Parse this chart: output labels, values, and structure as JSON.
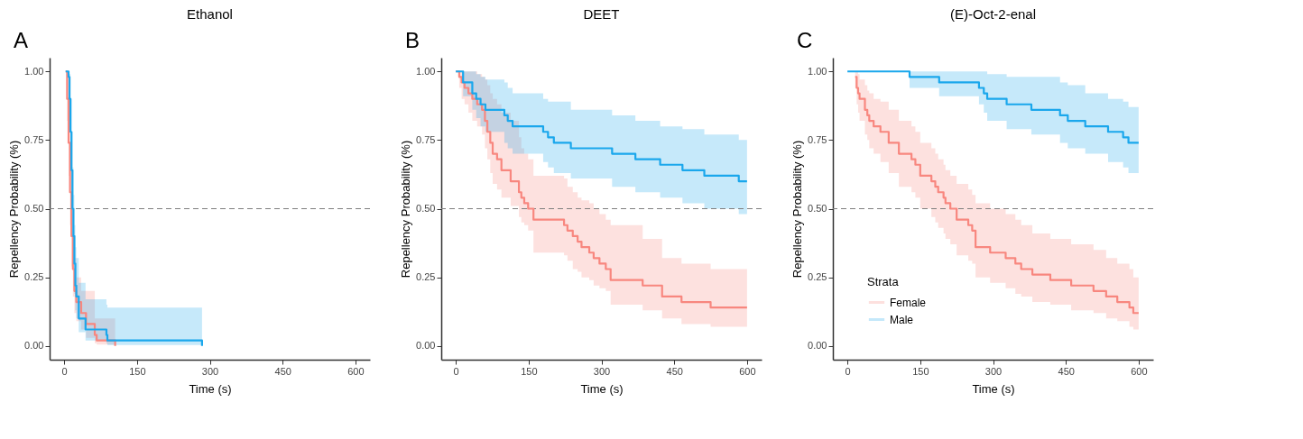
{
  "chart_data": [
    {
      "type": "step",
      "title": "Ethanol",
      "annotations": [
        "A"
      ],
      "xlabel": "Time (s)",
      "ylabel": "Repellency Probability (%)",
      "xlim": [
        -30,
        630
      ],
      "xticks": [
        0,
        150,
        300,
        450,
        600
      ],
      "ylim": [
        -0.05,
        1.05
      ],
      "yticks": [
        {
          "value": 0,
          "label": "0.00"
        },
        {
          "value": 0.25,
          "label": "0.25"
        },
        {
          "value": 0.5,
          "label": "0.50"
        },
        {
          "value": 0.75,
          "label": "0.75"
        },
        {
          "value": 1,
          "label": "1.00"
        }
      ],
      "ref_lines": [
        {
          "axis": "y",
          "value": 0.5,
          "line_style": "dashed",
          "color": "#7f7f7f"
        }
      ],
      "series": [
        {
          "color": "#f8877f",
          "x": [
            3,
            6,
            9,
            12,
            15,
            18,
            21,
            25,
            35,
            45,
            63,
            67,
            105
          ],
          "values": [
            1,
            0.9,
            0.74,
            0.56,
            0.4,
            0.28,
            0.2,
            0.16,
            0.12,
            0.08,
            0.04,
            0.02,
            0
          ],
          "upper": [
            1,
            0.98,
            0.87,
            0.7,
            0.54,
            0.42,
            0.32,
            0.25,
            0.2,
            0.2,
            0.1,
            0.1,
            0.1
          ],
          "lower": [
            1,
            0.82,
            0.62,
            0.44,
            0.29,
            0.18,
            0.12,
            0.09,
            0.06,
            0.03,
            0.01,
            0.005,
            0
          ]
        },
        {
          "color": "#1aa7ec",
          "x": [
            3,
            9,
            11,
            13,
            15,
            17,
            19,
            21,
            23,
            25,
            30,
            44,
            87,
            89,
            284
          ],
          "values": [
            1,
            0.98,
            0.9,
            0.78,
            0.64,
            0.5,
            0.4,
            0.3,
            0.22,
            0.18,
            0.1,
            0.06,
            0.04,
            0.02,
            0
          ],
          "upper": [
            1,
            1,
            0.99,
            0.9,
            0.78,
            0.65,
            0.55,
            0.44,
            0.36,
            0.32,
            0.23,
            0.17,
            0.15,
            0.14,
            0.14
          ],
          "lower": [
            1,
            0.94,
            0.82,
            0.68,
            0.52,
            0.38,
            0.28,
            0.19,
            0.13,
            0.1,
            0.05,
            0.02,
            0.01,
            0.003,
            0
          ]
        }
      ]
    },
    {
      "type": "step",
      "title": "DEET",
      "annotations": [
        "B"
      ],
      "xlabel": "Time (s)",
      "ylabel": "Repellency Probability (%)",
      "xlim": [
        -30,
        630
      ],
      "xticks": [
        0,
        150,
        300,
        450,
        600
      ],
      "ylim": [
        -0.05,
        1.05
      ],
      "yticks": [
        {
          "value": 0,
          "label": "0.00"
        },
        {
          "value": 0.25,
          "label": "0.25"
        },
        {
          "value": 0.5,
          "label": "0.50"
        },
        {
          "value": 0.75,
          "label": "0.75"
        },
        {
          "value": 1,
          "label": "1.00"
        }
      ],
      "ref_lines": [
        {
          "axis": "y",
          "value": 0.5,
          "line_style": "dashed",
          "color": "#7f7f7f"
        }
      ],
      "series": [
        {
          "color": "#f8877f",
          "x": [
            0,
            7,
            12,
            18,
            26,
            34,
            44,
            54,
            60,
            65,
            71,
            76,
            85,
            94,
            113,
            130,
            135,
            141,
            149,
            160,
            223,
            230,
            241,
            251,
            259,
            275,
            284,
            296,
            309,
            319,
            385,
            425,
            465,
            525,
            600
          ],
          "values": [
            1,
            0.98,
            0.96,
            0.94,
            0.92,
            0.9,
            0.88,
            0.86,
            0.82,
            0.78,
            0.74,
            0.7,
            0.68,
            0.64,
            0.6,
            0.56,
            0.54,
            0.52,
            0.5,
            0.46,
            0.44,
            0.42,
            0.4,
            0.38,
            0.36,
            0.34,
            0.32,
            0.3,
            0.28,
            0.24,
            0.22,
            0.18,
            0.16,
            0.14,
            0.14
          ],
          "upper": [
            1,
            1,
            1,
            1,
            1,
            1,
            0.99,
            0.98,
            0.97,
            0.95,
            0.92,
            0.9,
            0.88,
            0.85,
            0.82,
            0.76,
            0.72,
            0.7,
            0.68,
            0.62,
            0.61,
            0.58,
            0.56,
            0.54,
            0.53,
            0.52,
            0.5,
            0.48,
            0.46,
            0.44,
            0.39,
            0.32,
            0.3,
            0.28,
            0.28
          ],
          "lower": [
            1,
            0.94,
            0.9,
            0.88,
            0.85,
            0.82,
            0.8,
            0.77,
            0.72,
            0.68,
            0.63,
            0.59,
            0.57,
            0.54,
            0.51,
            0.47,
            0.45,
            0.44,
            0.42,
            0.34,
            0.33,
            0.31,
            0.28,
            0.27,
            0.25,
            0.24,
            0.22,
            0.21,
            0.2,
            0.15,
            0.13,
            0.1,
            0.08,
            0.07,
            0.07
          ]
        },
        {
          "color": "#1aa7ec",
          "x": [
            0,
            15,
            34,
            42,
            51,
            61,
            100,
            107,
            117,
            180,
            190,
            202,
            237,
            322,
            370,
            421,
            467,
            512,
            583,
            600
          ],
          "values": [
            1,
            0.96,
            0.92,
            0.9,
            0.88,
            0.86,
            0.84,
            0.82,
            0.8,
            0.78,
            0.76,
            0.74,
            0.72,
            0.7,
            0.68,
            0.66,
            0.64,
            0.62,
            0.6,
            0.6
          ],
          "upper": [
            1,
            1,
            1,
            0.99,
            0.98,
            0.97,
            0.96,
            0.94,
            0.92,
            0.9,
            0.89,
            0.89,
            0.86,
            0.84,
            0.82,
            0.8,
            0.79,
            0.77,
            0.75,
            0.75
          ],
          "lower": [
            1,
            0.91,
            0.86,
            0.83,
            0.8,
            0.78,
            0.74,
            0.72,
            0.7,
            0.67,
            0.65,
            0.63,
            0.61,
            0.58,
            0.56,
            0.54,
            0.52,
            0.5,
            0.48,
            0.48
          ]
        }
      ]
    },
    {
      "type": "step",
      "title": "(E)-Oct-2-enal",
      "annotations": [
        "C"
      ],
      "xlabel": "Time (s)",
      "ylabel": "Repellency Probability (%)",
      "xlim": [
        -30,
        630
      ],
      "xticks": [
        0,
        150,
        300,
        450,
        600
      ],
      "ylim": [
        -0.05,
        1.05
      ],
      "yticks": [
        {
          "value": 0,
          "label": "0.00"
        },
        {
          "value": 0.25,
          "label": "0.25"
        },
        {
          "value": 0.5,
          "label": "0.50"
        },
        {
          "value": 0.75,
          "label": "0.75"
        },
        {
          "value": 1,
          "label": "1.00"
        }
      ],
      "legend": "bottom left",
      "legend_title": "Strata",
      "ref_lines": [
        {
          "axis": "y",
          "value": 0.5,
          "line_style": "dashed",
          "color": "#7f7f7f"
        }
      ],
      "series": [
        {
          "name": "Female",
          "color": "#f8877f",
          "x": [
            0,
            16,
            19,
            22,
            25,
            36,
            41,
            45,
            54,
            68,
            85,
            106,
            132,
            140,
            150,
            173,
            181,
            187,
            198,
            202,
            212,
            225,
            249,
            257,
            264,
            294,
            326,
            346,
            358,
            381,
            418,
            461,
            507,
            533,
            556,
            581,
            589,
            600
          ],
          "values": [
            null,
            0.98,
            0.94,
            0.92,
            0.9,
            0.86,
            0.84,
            0.82,
            0.8,
            0.78,
            0.74,
            0.7,
            0.68,
            0.66,
            0.62,
            0.6,
            0.58,
            0.56,
            0.54,
            0.52,
            0.5,
            0.46,
            0.44,
            0.42,
            0.36,
            0.34,
            0.32,
            0.3,
            0.28,
            0.26,
            0.24,
            0.22,
            0.2,
            0.18,
            0.16,
            0.14,
            0.12,
            0.12
          ],
          "upper": [
            1,
            1,
            1,
            0.99,
            0.97,
            0.95,
            0.93,
            0.92,
            0.9,
            0.89,
            0.86,
            0.82,
            0.8,
            0.78,
            0.74,
            0.72,
            0.7,
            0.68,
            0.66,
            0.64,
            0.62,
            0.59,
            0.57,
            0.55,
            0.52,
            0.5,
            0.48,
            0.46,
            0.44,
            0.41,
            0.39,
            0.37,
            0.35,
            0.32,
            0.3,
            0.28,
            0.25,
            0.25
          ],
          "lower": [
            1,
            0.94,
            0.88,
            0.85,
            0.82,
            0.77,
            0.75,
            0.72,
            0.7,
            0.67,
            0.63,
            0.58,
            0.56,
            0.54,
            0.5,
            0.47,
            0.45,
            0.43,
            0.41,
            0.39,
            0.37,
            0.33,
            0.31,
            0.3,
            0.25,
            0.23,
            0.21,
            0.19,
            0.18,
            0.16,
            0.15,
            0.13,
            0.12,
            0.1,
            0.09,
            0.07,
            0.06,
            0.06
          ]
        },
        {
          "name": "Male",
          "color": "#1aa7ec",
          "x": [
            0,
            128,
            189,
            271,
            281,
            288,
            328,
            379,
            438,
            454,
            490,
            537,
            568,
            579,
            600
          ],
          "values": [
            1,
            0.98,
            0.96,
            0.94,
            0.92,
            0.9,
            0.88,
            0.86,
            0.84,
            0.82,
            0.8,
            0.78,
            0.76,
            0.74,
            0.74
          ],
          "upper": [
            1,
            1,
            1,
            1,
            1,
            0.99,
            0.98,
            0.98,
            0.96,
            0.95,
            0.92,
            0.9,
            0.89,
            0.87,
            0.87
          ],
          "lower": [
            1,
            0.94,
            0.91,
            0.88,
            0.85,
            0.82,
            0.79,
            0.77,
            0.74,
            0.72,
            0.7,
            0.67,
            0.65,
            0.63,
            0.63
          ]
        }
      ]
    }
  ]
}
